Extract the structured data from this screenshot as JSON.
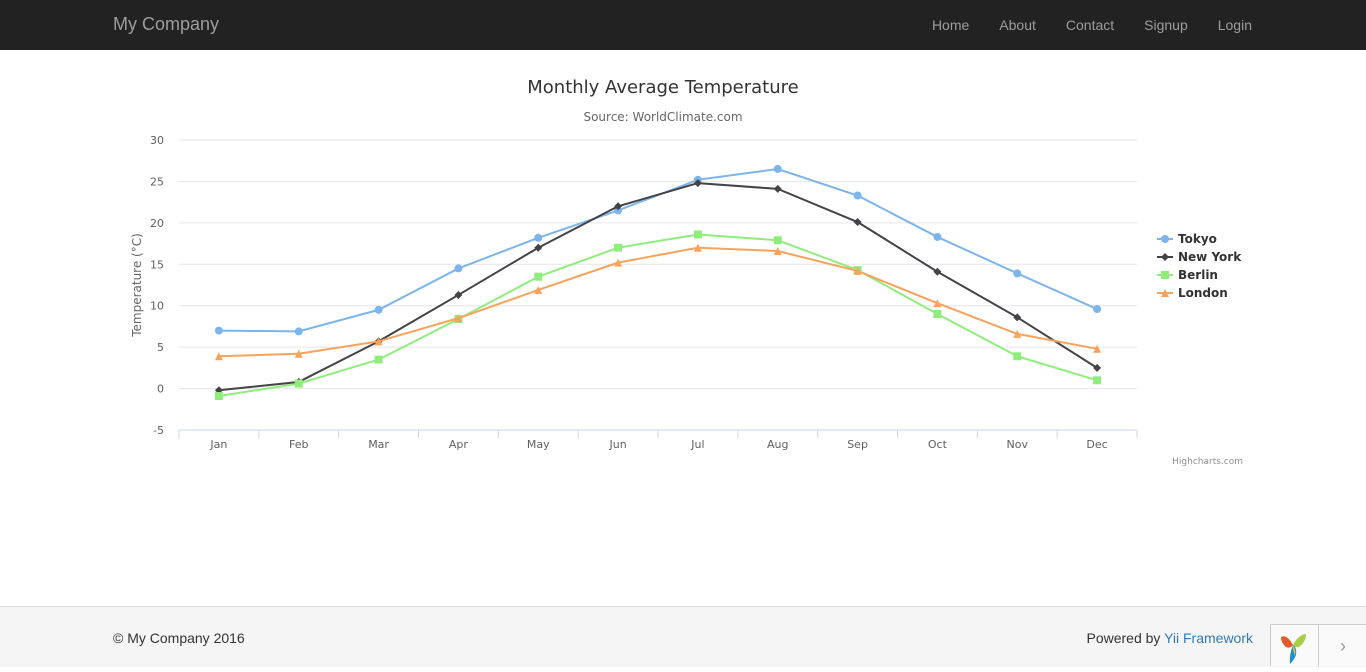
{
  "navbar": {
    "brand": "My Company",
    "links": [
      "Home",
      "About",
      "Contact",
      "Signup",
      "Login"
    ]
  },
  "chart_data": {
    "type": "line",
    "title": "Monthly Average Temperature",
    "subtitle": "Source: WorldClimate.com",
    "ylabel": "Temperature (°C)",
    "xlabel": "",
    "categories": [
      "Jan",
      "Feb",
      "Mar",
      "Apr",
      "May",
      "Jun",
      "Jul",
      "Aug",
      "Sep",
      "Oct",
      "Nov",
      "Dec"
    ],
    "ylim": [
      -5,
      30
    ],
    "yticks": [
      -5,
      0,
      5,
      10,
      15,
      20,
      25,
      30
    ],
    "grid": true,
    "legend_position": "right",
    "credits": "Highcharts.com",
    "series": [
      {
        "name": "Tokyo",
        "color": "#7cb5ec",
        "marker": "circle",
        "values": [
          7.0,
          6.9,
          9.5,
          14.5,
          18.2,
          21.5,
          25.2,
          26.5,
          23.3,
          18.3,
          13.9,
          9.6
        ]
      },
      {
        "name": "New York",
        "color": "#434348",
        "marker": "diamond",
        "values": [
          -0.2,
          0.8,
          5.7,
          11.3,
          17.0,
          22.0,
          24.8,
          24.1,
          20.1,
          14.1,
          8.6,
          2.5
        ]
      },
      {
        "name": "Berlin",
        "color": "#90ed7d",
        "marker": "square",
        "values": [
          -0.9,
          0.6,
          3.5,
          8.4,
          13.5,
          17.0,
          18.6,
          17.9,
          14.3,
          9.0,
          3.9,
          1.0
        ]
      },
      {
        "name": "London",
        "color": "#f7a35c",
        "marker": "triangle",
        "values": [
          3.9,
          4.2,
          5.7,
          8.5,
          11.9,
          15.2,
          17.0,
          16.6,
          14.2,
          10.3,
          6.6,
          4.8
        ]
      }
    ]
  },
  "footer": {
    "copyright": "© My Company 2016",
    "powered_prefix": "Powered by ",
    "powered_link": "Yii Framework"
  },
  "debug": {
    "toggle_icon": "chevron-right-icon",
    "toggle_glyph": "›"
  }
}
